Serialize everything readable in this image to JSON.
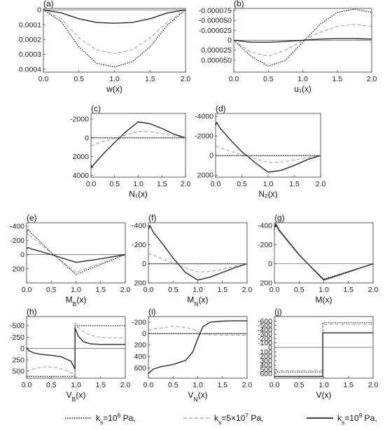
{
  "chart_data": [
    {
      "id": "a",
      "type": "line",
      "panel_tag": "(a)",
      "xlabel": "w(x)",
      "xlim": [
        0,
        2
      ],
      "ylim": [
        0.00042,
        -1e-05
      ],
      "y_inverted": true,
      "xticks": [
        "0.0",
        "0.5",
        "1.0",
        "1.5",
        "2.0"
      ],
      "yticks": [
        "0",
        "0.0001",
        "0.0002",
        "0.0003",
        "0.0004"
      ],
      "ytick_values": [
        0,
        0.0001,
        0.0002,
        0.0003,
        0.0004
      ],
      "series": [
        {
          "style": "dotted",
          "x": [
            0,
            0.25,
            0.5,
            0.75,
            1.0,
            1.25,
            1.5,
            1.75,
            2.0
          ],
          "y": [
            0,
            8e-05,
            0.00025,
            0.00036,
            0.000385,
            0.00035,
            0.00025,
            0.0001,
            0
          ]
        },
        {
          "style": "dashed",
          "x": [
            0,
            0.25,
            0.5,
            0.75,
            1.0,
            1.25,
            1.5,
            1.75,
            2.0
          ],
          "y": [
            0,
            6e-05,
            0.00019,
            0.00027,
            0.000295,
            0.00027,
            0.00019,
            8e-05,
            0
          ]
        },
        {
          "style": "solid",
          "x": [
            0,
            0.25,
            0.5,
            0.75,
            1.0,
            1.25,
            1.5,
            1.75,
            2.0
          ],
          "y": [
            0,
            2e-05,
            6e-05,
            8.5e-05,
            9e-05,
            8.5e-05,
            6e-05,
            2e-05,
            0
          ]
        }
      ]
    },
    {
      "id": "b",
      "type": "line",
      "panel_tag": "(b)",
      "xlabel": "u₁(x)",
      "xlim": [
        0,
        2
      ],
      "ylim": [
        8e-05,
        -8e-05
      ],
      "y_inverted": true,
      "xticks": [
        "0.0",
        "0.5",
        "1.0",
        "1.5",
        "2.0"
      ],
      "yticks": [
        "-0.000075",
        "-0.000050",
        "-0.000025",
        "0",
        "0.000025",
        "0.000050"
      ],
      "ytick_values": [
        -7.5e-05,
        -5e-05,
        -2.5e-05,
        0,
        2.5e-05,
        5e-05
      ],
      "series": [
        {
          "style": "dotted",
          "x": [
            0,
            0.25,
            0.5,
            0.75,
            1.0,
            1.25,
            1.5,
            1.75,
            2.0
          ],
          "y": [
            0,
            4e-05,
            6.5e-05,
            5e-05,
            5e-06,
            -4e-05,
            -7e-05,
            -7.8e-05,
            -7e-05
          ]
        },
        {
          "style": "dashed",
          "x": [
            0,
            0.25,
            0.5,
            0.75,
            1.0,
            1.25,
            1.5,
            1.75,
            2.0
          ],
          "y": [
            0,
            3e-05,
            4e-05,
            2.5e-05,
            0,
            -2e-05,
            -3.5e-05,
            -4e-05,
            -3.5e-05
          ]
        },
        {
          "style": "solid",
          "x": [
            0,
            0.25,
            0.5,
            0.75,
            1.0,
            1.25,
            1.5,
            1.75,
            2.0
          ],
          "y": [
            0,
            5e-06,
            5e-06,
            3e-06,
            0,
            -3e-06,
            -4e-06,
            -4e-06,
            -3e-06
          ]
        }
      ]
    },
    {
      "id": "c",
      "type": "line",
      "panel_tag": "(c)",
      "xlabel": "N₁(x)",
      "xlim": [
        0,
        2
      ],
      "ylim": [
        4200,
        -2600
      ],
      "y_inverted": true,
      "xticks": [
        "0.0",
        "0.5",
        "1.0",
        "1.5",
        "2.0"
      ],
      "yticks": [
        "-2000",
        "0",
        "2000",
        "4000"
      ],
      "ytick_values": [
        -2000,
        0,
        2000,
        4000
      ],
      "series": [
        {
          "style": "solid",
          "x": [
            0,
            0.02,
            0.05,
            0.1,
            0.3,
            0.5,
            0.75,
            1.0,
            1.25,
            1.5,
            1.75,
            2.0
          ],
          "y": [
            2900,
            3200,
            2900,
            2600,
            1500,
            500,
            -700,
            -1700,
            -1500,
            -1000,
            -400,
            0
          ]
        },
        {
          "style": "dashed",
          "x": [
            0,
            0.1,
            0.25,
            0.5,
            0.75,
            1.0,
            1.25,
            1.5,
            1.75,
            2.0
          ],
          "y": [
            900,
            650,
            400,
            100,
            -300,
            -700,
            -650,
            -450,
            -200,
            0
          ]
        },
        {
          "style": "dotted",
          "x": [
            0,
            0.5,
            1.0,
            1.5,
            2.0
          ],
          "y": [
            0,
            0,
            0,
            0,
            0
          ]
        }
      ]
    },
    {
      "id": "d",
      "type": "line",
      "panel_tag": "(d)",
      "xlabel": "N₂(x)",
      "xlim": [
        0,
        2
      ],
      "ylim": [
        2200,
        -4300
      ],
      "y_inverted": true,
      "xticks": [
        "0.0",
        "0.5",
        "1.0",
        "1.5",
        "2.0"
      ],
      "yticks": [
        "-4000",
        "-2000",
        "0",
        "2000"
      ],
      "ytick_values": [
        -4000,
        -2000,
        0,
        2000
      ],
      "series": [
        {
          "style": "solid",
          "x": [
            0,
            0.02,
            0.05,
            0.1,
            0.3,
            0.5,
            0.75,
            1.0,
            1.25,
            1.5,
            1.75,
            2.0
          ],
          "y": [
            -3100,
            -3400,
            -3100,
            -2700,
            -1500,
            -400,
            700,
            1700,
            1500,
            1000,
            400,
            0
          ]
        },
        {
          "style": "dashed",
          "x": [
            0,
            0.1,
            0.25,
            0.5,
            0.75,
            1.0,
            1.25,
            1.5,
            1.75,
            2.0
          ],
          "y": [
            -1000,
            -800,
            -500,
            -100,
            300,
            700,
            650,
            450,
            200,
            0
          ]
        },
        {
          "style": "dotted",
          "x": [
            0,
            0.5,
            1.0,
            1.5,
            2.0
          ],
          "y": [
            0,
            0,
            0,
            0,
            0
          ]
        }
      ]
    },
    {
      "id": "e",
      "type": "line",
      "panel_tag": "(e)",
      "xlabel": "M_B(x)",
      "xlim": [
        0,
        2
      ],
      "ylim": [
        400,
        -450
      ],
      "y_inverted": true,
      "xticks": [
        "0.0",
        "0.5",
        "1.0",
        "1.5",
        "2.0"
      ],
      "yticks": [
        "-400",
        "-200",
        "0",
        "200"
      ],
      "ytick_values": [
        -400,
        -200,
        0,
        200
      ],
      "series": [
        {
          "style": "dotted",
          "x": [
            0,
            0.03,
            0.1,
            0.5,
            1.0,
            1.5,
            2.0
          ],
          "y": [
            -310,
            -360,
            -300,
            -30,
            280,
            140,
            0
          ]
        },
        {
          "style": "dashed",
          "x": [
            0,
            0.03,
            0.1,
            0.5,
            1.0,
            1.5,
            2.0
          ],
          "y": [
            -260,
            -300,
            -250,
            -20,
            250,
            120,
            0
          ]
        },
        {
          "style": "solid",
          "x": [
            0,
            0.03,
            0.1,
            0.5,
            1.0,
            1.5,
            2.0
          ],
          "y": [
            -80,
            -100,
            -80,
            0,
            110,
            60,
            0
          ]
        }
      ]
    },
    {
      "id": "f",
      "type": "line",
      "panel_tag": "(f)",
      "xlabel": "M_N(x)",
      "xlim": [
        0,
        2
      ],
      "ylim": [
        200,
        -430
      ],
      "y_inverted": true,
      "xticks": [
        "0.0",
        "0.5",
        "1.0",
        "1.5",
        "2.0"
      ],
      "yticks": [
        "-400",
        "-200",
        "0",
        "200"
      ],
      "ytick_values": [
        -400,
        -200,
        0,
        200
      ],
      "series": [
        {
          "style": "solid",
          "x": [
            0,
            0.03,
            0.1,
            0.3,
            0.5,
            0.75,
            1.0,
            1.25,
            1.5,
            1.75,
            2.0
          ],
          "y": [
            -360,
            -400,
            -330,
            -200,
            -60,
            90,
            170,
            140,
            90,
            40,
            0
          ]
        },
        {
          "style": "dashed",
          "x": [
            0,
            0.1,
            0.25,
            0.5,
            0.75,
            1.0,
            1.25,
            1.5,
            1.75,
            2.0
          ],
          "y": [
            -110,
            -90,
            -60,
            -10,
            40,
            85,
            80,
            55,
            25,
            0
          ]
        },
        {
          "style": "dotted",
          "x": [
            0,
            0.5,
            1.0,
            1.5,
            2.0
          ],
          "y": [
            0,
            0,
            0,
            0,
            0
          ]
        }
      ]
    },
    {
      "id": "g",
      "type": "line",
      "panel_tag": "(g)",
      "xlabel": "M(x)",
      "xlim": [
        0,
        2
      ],
      "ylim": [
        200,
        -430
      ],
      "y_inverted": true,
      "xticks": [
        "0.0",
        "0.5",
        "1.0",
        "1.5",
        "2.0"
      ],
      "yticks": [
        "-400",
        "-200",
        "0",
        "200"
      ],
      "ytick_values": [
        -400,
        -200,
        0,
        200
      ],
      "series": [
        {
          "style": "dotted",
          "x": [
            0,
            0.03,
            0.1,
            0.5,
            1.0,
            1.5,
            2.0
          ],
          "y": [
            -360,
            -400,
            -340,
            -90,
            160,
            80,
            0
          ]
        },
        {
          "style": "dashed",
          "x": [
            0,
            0.03,
            0.1,
            0.5,
            1.0,
            1.5,
            2.0
          ],
          "y": [
            -370,
            -410,
            -345,
            -90,
            165,
            82,
            0
          ]
        },
        {
          "style": "solid",
          "x": [
            0,
            0.03,
            0.1,
            0.5,
            1.0,
            1.5,
            2.0
          ],
          "y": [
            -380,
            -420,
            -350,
            -95,
            170,
            85,
            0
          ]
        }
      ]
    },
    {
      "id": "h",
      "type": "line",
      "panel_tag": "(h)",
      "xlabel": "V_B(x)",
      "xlim": [
        0,
        2
      ],
      "ylim": [
        650,
        -700
      ],
      "y_inverted": true,
      "xticks": [
        "0.0",
        "0.5",
        "1.0",
        "1.5",
        "2.0"
      ],
      "yticks": [
        "-500",
        "-250",
        "0",
        "250",
        "500"
      ],
      "ytick_values": [
        -500,
        -250,
        0,
        250,
        500
      ],
      "series": [
        {
          "style": "dotted",
          "x": [
            0,
            0.25,
            0.5,
            0.75,
            0.98,
            0.98,
            1.25,
            1.5,
            1.75,
            2.0
          ],
          "y": [
            610,
            610,
            610,
            610,
            610,
            -500,
            -500,
            -500,
            -500,
            -500
          ]
        },
        {
          "style": "dashed",
          "x": [
            0,
            0.1,
            0.25,
            0.4,
            0.6,
            0.8,
            0.95,
            0.98,
            0.98,
            1.05,
            1.2,
            1.4,
            1.6,
            2.0
          ],
          "y": [
            500,
            460,
            420,
            400,
            420,
            470,
            560,
            640,
            -560,
            -460,
            -330,
            -260,
            -240,
            -230
          ]
        },
        {
          "style": "solid",
          "x": [
            0,
            0.05,
            0.15,
            0.3,
            0.5,
            0.7,
            0.9,
            0.98,
            0.98,
            1.05,
            1.15,
            1.3,
            1.5,
            2.0
          ],
          "y": [
            -20,
            50,
            100,
            130,
            150,
            180,
            280,
            450,
            -450,
            -270,
            -150,
            -100,
            -90,
            -90
          ]
        }
      ]
    },
    {
      "id": "i",
      "type": "line",
      "panel_tag": "(i)",
      "xlabel": "V_N(x)",
      "xlim": [
        0,
        2
      ],
      "ylim": [
        780,
        -300
      ],
      "y_inverted": true,
      "xticks": [
        "0.0",
        "0.5",
        "1.0",
        "1.5",
        "2.0"
      ],
      "yticks": [
        "-200",
        "0",
        "200",
        "400",
        "600"
      ],
      "ytick_values": [
        -200,
        0,
        200,
        400,
        600
      ],
      "series": [
        {
          "style": "solid",
          "x": [
            0,
            0.1,
            0.25,
            0.5,
            0.75,
            0.9,
            1.0,
            1.1,
            1.25,
            1.5,
            1.75,
            2.0
          ],
          "y": [
            700,
            620,
            580,
            540,
            470,
            320,
            90,
            -120,
            -200,
            -220,
            -225,
            -225
          ]
        },
        {
          "style": "dashed",
          "x": [
            0,
            0.1,
            0.25,
            0.5,
            0.75,
            0.9,
            1.0,
            1.1,
            1.25,
            1.5,
            1.75,
            2.0
          ],
          "y": [
            -60,
            -80,
            -100,
            -130,
            -110,
            -80,
            -40,
            0,
            20,
            25,
            25,
            25
          ]
        },
        {
          "style": "dotted",
          "x": [
            0,
            0.5,
            1.0,
            1.5,
            2.0
          ],
          "y": [
            0,
            0,
            0,
            0,
            0
          ]
        }
      ]
    },
    {
      "id": "j",
      "type": "line",
      "panel_tag": "(j)",
      "xlabel": "V(x)",
      "xlim": [
        0,
        2
      ],
      "ylim": [
        700,
        -700
      ],
      "y_inverted": true,
      "xticks": [
        "0.0",
        "0.5",
        "1.0",
        "1.5",
        "2.0"
      ],
      "yticks": [
        "-600",
        "-500",
        "-400",
        "-300",
        "-200",
        "-100",
        "0",
        "100",
        "200",
        "300",
        "400",
        "500",
        "600"
      ],
      "ytick_values": [
        -600,
        -500,
        -400,
        -300,
        -200,
        -100,
        0,
        100,
        200,
        300,
        400,
        500,
        600
      ],
      "series": [
        {
          "style": "dotted",
          "x": [
            0,
            0.98,
            0.98,
            2.0
          ],
          "y": [
            560,
            560,
            -560,
            -560
          ]
        },
        {
          "style": "dashed",
          "x": [
            0,
            0.98,
            0.98,
            2.0
          ],
          "y": [
            520,
            520,
            -520,
            -520
          ]
        },
        {
          "style": "solid",
          "x": [
            0,
            0.98,
            0.98,
            2.0
          ],
          "y": [
            660,
            660,
            -330,
            -330
          ]
        }
      ]
    }
  ],
  "legend": {
    "placement": "bottom",
    "entries": [
      {
        "style": "dotted",
        "label": "k_s=10^6 Pa,"
      },
      {
        "style": "dashed",
        "label": "k_s=5×10^7 Pa,"
      },
      {
        "style": "solid",
        "label": "k_s=10^9 Pa,"
      }
    ]
  },
  "colors": {
    "dotted": "#1a1a1a",
    "dashed": "#9a9a9a",
    "solid": "#2a2a2a",
    "axes": "#333333",
    "zero_line": "#555555"
  }
}
